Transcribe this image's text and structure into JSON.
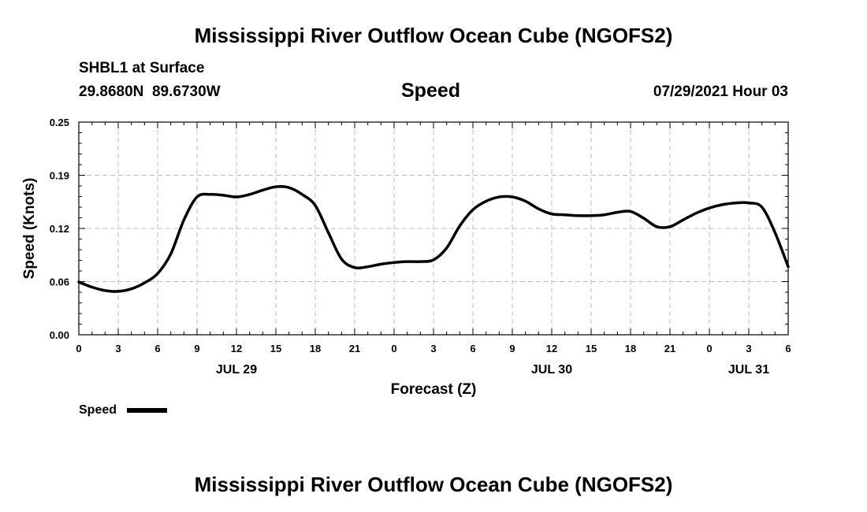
{
  "page": {
    "title_top": "Mississippi River Outflow Ocean Cube (NGOFS2)",
    "title_bottom": "Mississippi River Outflow Ocean Cube (NGOFS2)",
    "station": "SHBL1 at Surface",
    "coords": "29.8680N  89.6730W",
    "variable": "Speed",
    "datetime": "07/29/2021 Hour 03"
  },
  "chart_data": {
    "type": "line",
    "title": "Speed",
    "xlabel": "Forecast (Z)",
    "ylabel": "Speed (Knots)",
    "ylim": [
      0.0,
      0.25
    ],
    "yticks": [
      "0.00",
      "0.06",
      "0.12",
      "0.19",
      "0.25"
    ],
    "ytick_values": [
      0.0,
      0.0625,
      0.125,
      0.1875,
      0.25
    ],
    "xlim": [
      0,
      54
    ],
    "xticks": [
      {
        "hour": 0,
        "label": "0"
      },
      {
        "hour": 3,
        "label": "3"
      },
      {
        "hour": 6,
        "label": "6"
      },
      {
        "hour": 9,
        "label": "9"
      },
      {
        "hour": 12,
        "label": "12"
      },
      {
        "hour": 15,
        "label": "15"
      },
      {
        "hour": 18,
        "label": "18"
      },
      {
        "hour": 21,
        "label": "21"
      },
      {
        "hour": 24,
        "label": "0"
      },
      {
        "hour": 27,
        "label": "3"
      },
      {
        "hour": 30,
        "label": "6"
      },
      {
        "hour": 33,
        "label": "9"
      },
      {
        "hour": 36,
        "label": "12"
      },
      {
        "hour": 39,
        "label": "15"
      },
      {
        "hour": 42,
        "label": "18"
      },
      {
        "hour": 45,
        "label": "21"
      },
      {
        "hour": 48,
        "label": "0"
      },
      {
        "hour": 51,
        "label": "3"
      },
      {
        "hour": 54,
        "label": "6"
      }
    ],
    "date_labels": [
      {
        "hour": 12,
        "label": "JUL 29"
      },
      {
        "hour": 36,
        "label": "JUL 30"
      },
      {
        "hour": 51,
        "label": "JUL 31"
      }
    ],
    "grid": true,
    "legend_position": "bottom-left",
    "series": [
      {
        "name": "Speed",
        "color": "#000000",
        "x": [
          0,
          1,
          2,
          3,
          4,
          5,
          6,
          7,
          8,
          9,
          10,
          11,
          12,
          13,
          14,
          15,
          16,
          17,
          18,
          19,
          20,
          21,
          22,
          23,
          24,
          25,
          26,
          27,
          28,
          29,
          30,
          31,
          32,
          33,
          34,
          35,
          36,
          37,
          38,
          39,
          40,
          41,
          42,
          43,
          44,
          45,
          46,
          47,
          48,
          49,
          50,
          51,
          52,
          53,
          54
        ],
        "values": [
          0.062,
          0.056,
          0.052,
          0.051,
          0.054,
          0.061,
          0.072,
          0.095,
          0.135,
          0.162,
          0.165,
          0.164,
          0.162,
          0.165,
          0.17,
          0.174,
          0.173,
          0.165,
          0.152,
          0.12,
          0.089,
          0.079,
          0.08,
          0.083,
          0.085,
          0.086,
          0.086,
          0.088,
          0.102,
          0.128,
          0.147,
          0.157,
          0.162,
          0.162,
          0.157,
          0.148,
          0.142,
          0.141,
          0.14,
          0.14,
          0.141,
          0.144,
          0.145,
          0.137,
          0.127,
          0.127,
          0.135,
          0.143,
          0.149,
          0.153,
          0.155,
          0.155,
          0.15,
          0.12,
          0.08
        ]
      }
    ]
  }
}
